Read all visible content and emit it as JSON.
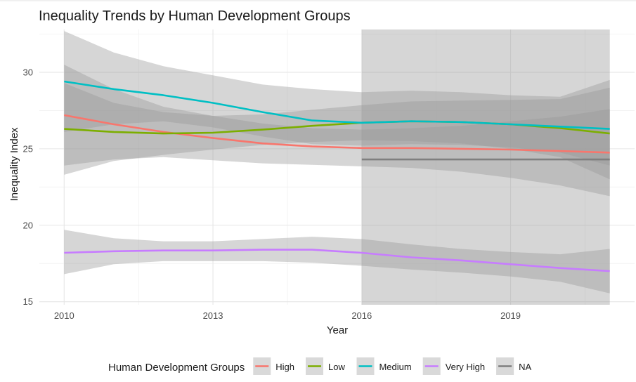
{
  "chart_data": {
    "type": "line",
    "title": "Inequality Trends by Human Development Groups",
    "xlabel": "Year",
    "ylabel": "Inequality Index",
    "xlim": [
      2009.5,
      2021.5
    ],
    "ylim": [
      14.8,
      32.8
    ],
    "x_ticks": [
      2010,
      2013,
      2016,
      2019
    ],
    "y_ticks": [
      15,
      20,
      25,
      30
    ],
    "grid": true,
    "legend_position": "bottom",
    "legend_title": "Human Development Groups",
    "series": [
      {
        "name": "High",
        "color": "#F8766D",
        "x": [
          2010,
          2011,
          2012,
          2013,
          2014,
          2015,
          2016,
          2017,
          2018,
          2019,
          2020,
          2021
        ],
        "y": [
          27.2,
          26.6,
          26.1,
          25.7,
          25.35,
          25.15,
          25.05,
          25.05,
          25.0,
          24.95,
          24.85,
          24.75
        ],
        "lower": [
          23.9,
          24.3,
          24.45,
          24.25,
          24.05,
          23.95,
          23.85,
          23.75,
          23.5,
          23.1,
          22.6,
          21.9
        ],
        "upper": [
          30.5,
          28.9,
          27.75,
          27.15,
          26.65,
          26.35,
          26.25,
          26.35,
          26.5,
          26.8,
          27.1,
          27.6
        ]
      },
      {
        "name": "Low",
        "color": "#7CAE00",
        "x": [
          2010,
          2011,
          2012,
          2013,
          2014,
          2015,
          2016,
          2017,
          2018,
          2019,
          2020,
          2021
        ],
        "y": [
          26.3,
          26.1,
          26.0,
          26.05,
          26.25,
          26.5,
          26.7,
          26.8,
          26.75,
          26.6,
          26.35,
          26.0
        ],
        "lower": [
          23.3,
          24.2,
          24.6,
          24.95,
          25.25,
          25.45,
          25.55,
          25.5,
          25.35,
          25.0,
          24.45,
          23.0
        ],
        "upper": [
          29.3,
          28.0,
          27.4,
          27.15,
          27.25,
          27.55,
          27.85,
          28.1,
          28.15,
          28.2,
          28.25,
          29.0
        ]
      },
      {
        "name": "Medium",
        "color": "#00BFC4",
        "x": [
          2010,
          2011,
          2012,
          2013,
          2014,
          2015,
          2016,
          2017,
          2018,
          2019,
          2020,
          2021
        ],
        "y": [
          29.4,
          28.9,
          28.5,
          28.0,
          27.4,
          26.85,
          26.7,
          26.8,
          26.75,
          26.6,
          26.45,
          26.3
        ],
        "lower": [
          26.1,
          26.6,
          26.8,
          26.4,
          25.8,
          25.3,
          25.2,
          25.3,
          25.25,
          25.1,
          24.75,
          23.9
        ],
        "upper": [
          32.7,
          31.3,
          30.4,
          29.8,
          29.2,
          28.9,
          28.7,
          28.8,
          28.7,
          28.5,
          28.4,
          29.5
        ]
      },
      {
        "name": "Very High",
        "color": "#C77CFF",
        "x": [
          2010,
          2011,
          2012,
          2013,
          2014,
          2015,
          2016,
          2017,
          2018,
          2019,
          2020,
          2021
        ],
        "y": [
          18.2,
          18.3,
          18.35,
          18.35,
          18.4,
          18.4,
          18.2,
          17.9,
          17.7,
          17.45,
          17.2,
          17.0
        ],
        "lower": [
          16.8,
          17.45,
          17.65,
          17.65,
          17.65,
          17.55,
          17.35,
          17.1,
          16.9,
          16.65,
          16.3,
          15.55
        ],
        "upper": [
          19.7,
          19.15,
          18.95,
          18.95,
          19.1,
          19.25,
          19.1,
          18.75,
          18.45,
          18.25,
          18.1,
          18.45
        ]
      },
      {
        "name": "NA",
        "color": "#7F7F7F",
        "x": [
          2016,
          2021
        ],
        "y": [
          24.3,
          24.3
        ],
        "lower": [
          14.8,
          14.8
        ],
        "upper": [
          32.8,
          32.8
        ]
      }
    ]
  }
}
